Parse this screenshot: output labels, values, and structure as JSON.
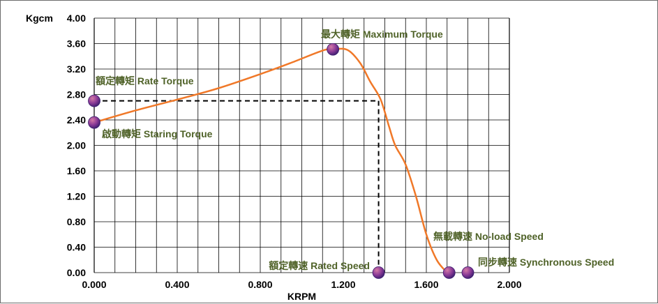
{
  "chart_data": {
    "type": "line",
    "xlabel": "KRPM",
    "ylabel": "Kgcm",
    "xlim": [
      0,
      2.0
    ],
    "ylim": [
      0,
      4.0
    ],
    "x_ticks": [
      "0.000",
      "0.400",
      "0.800",
      "1.200",
      "1.600",
      "2.000"
    ],
    "y_ticks": [
      "0.00",
      "0.40",
      "0.80",
      "1.20",
      "1.60",
      "2.00",
      "2.40",
      "2.80",
      "3.20",
      "3.60",
      "4.00"
    ],
    "grid": true,
    "series": [
      {
        "x": [
          0.0,
          0.2,
          0.4,
          0.6,
          0.8,
          0.95,
          1.1,
          1.15,
          1.22,
          1.28,
          1.33,
          1.38,
          1.42,
          1.45,
          1.5,
          1.55,
          1.6,
          1.65,
          1.7
        ],
        "y": [
          2.36,
          2.55,
          2.72,
          2.9,
          3.12,
          3.3,
          3.49,
          3.51,
          3.5,
          3.3,
          3.0,
          2.72,
          2.3,
          2.0,
          1.7,
          1.2,
          0.6,
          0.2,
          0.0
        ],
        "color": "#f07828"
      }
    ],
    "rated_point": {
      "x": 1.37,
      "y": 2.7
    },
    "points": [
      {
        "name": "starting-torque",
        "x": 0.0,
        "y": 2.36,
        "label": "啟動轉矩 Staring Torque"
      },
      {
        "name": "rate-torque",
        "x": 0.0,
        "y": 2.7,
        "label": "額定轉矩 Rate Torque"
      },
      {
        "name": "maximum-torque",
        "x": 1.15,
        "y": 3.51,
        "label": "最大轉矩 Maximum Torque"
      },
      {
        "name": "rated-speed",
        "x": 1.37,
        "y": 0.0,
        "label": "額定轉速 Rated Speed"
      },
      {
        "name": "no-load-speed",
        "x": 1.71,
        "y": 0.0,
        "label": "無載轉速 No-load Speed"
      },
      {
        "name": "synchronous-speed",
        "x": 1.8,
        "y": 0.0,
        "label": "同步轉速 Synchronous Speed"
      }
    ],
    "colors": {
      "line": "#f07828",
      "annotation_text": "#4f6228",
      "marker_light": "#c06090",
      "marker_dark": "#40207a",
      "grid": "#000000"
    }
  }
}
